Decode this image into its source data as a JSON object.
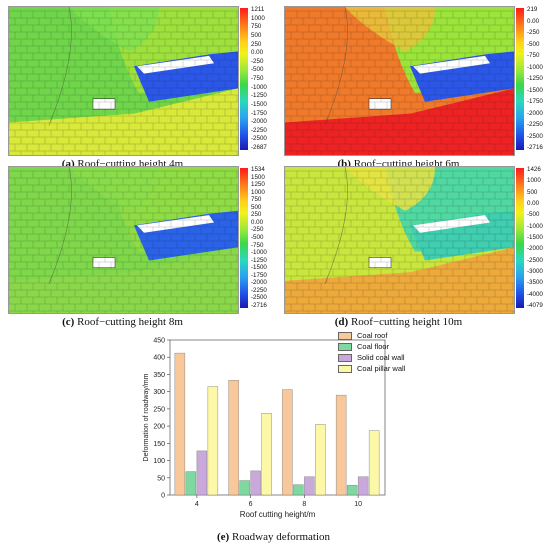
{
  "panels": [
    {
      "caption_letter": "(a)",
      "caption_text": "Roof−cutting height 4m",
      "colorbar_ticks": [
        "1211",
        "1000",
        "750",
        "500",
        "250",
        "0.00",
        "-250",
        "-500",
        "-750",
        "-1000",
        "-1250",
        "-1500",
        "-1750",
        "-2000",
        "-2250",
        "-2500",
        "-2687"
      ],
      "colors": {
        "left": "#6fd64a",
        "right": "#9ee03c",
        "floor": "#d8e93a",
        "block": "#2a57e8",
        "top": "#7fe04f"
      }
    },
    {
      "caption_letter": "(b)",
      "caption_text": "Roof−cutting height 6m",
      "colorbar_ticks": [
        "219",
        "0.00",
        "-250",
        "-500",
        "-750",
        "-1000",
        "-1250",
        "-1500",
        "-1750",
        "-2000",
        "-2250",
        "-2500",
        "-2716"
      ],
      "colors": {
        "left": "#f07a2a",
        "right": "#9be53a",
        "floor": "#ee2222",
        "block": "#2a57e8",
        "top": "#e8c43a"
      }
    },
    {
      "caption_letter": "(c)",
      "caption_text": "Roof−cutting height 8m",
      "colorbar_ticks": [
        "1534",
        "1500",
        "1250",
        "1000",
        "750",
        "500",
        "250",
        "0.00",
        "-250",
        "-500",
        "-750",
        "-1000",
        "-1250",
        "-1500",
        "-1750",
        "-2000",
        "-2250",
        "-2500",
        "-2716"
      ],
      "colors": {
        "left": "#7ed84a",
        "right": "#8fdc44",
        "floor": "#8ad84a",
        "block": "#2a62e8",
        "top": "#89dd4a"
      }
    },
    {
      "caption_letter": "(d)",
      "caption_text": "Roof−cutting height 10m",
      "colorbar_ticks": [
        "1426",
        "1000",
        "500",
        "0.00",
        "-500",
        "-1000",
        "-1500",
        "-2000",
        "-2500",
        "-3000",
        "-3500",
        "-4000",
        "-4079"
      ],
      "colors": {
        "left": "#c8e63c",
        "right": "#4fd8a0",
        "floor": "#eda93a",
        "block": "#3fcfb0",
        "top": "#e9e342"
      }
    }
  ],
  "chart_caption_letter": "(e)",
  "chart_caption_text": "Roadway deformation",
  "chart_data": {
    "type": "bar",
    "categories": [
      "4",
      "6",
      "8",
      "10"
    ],
    "series": [
      {
        "name": "Coal roof",
        "values": [
          412,
          333,
          306,
          290
        ],
        "color": "#f9c89a"
      },
      {
        "name": "Coal floor",
        "values": [
          68,
          42,
          30,
          28
        ],
        "color": "#7ed8a0"
      },
      {
        "name": "Solid coal wall",
        "values": [
          128,
          70,
          53,
          53
        ],
        "color": "#c9a8dc"
      },
      {
        "name": "Coal pillar wall",
        "values": [
          315,
          237,
          205,
          187
        ],
        "color": "#fdf8a8"
      }
    ],
    "xlabel": "Roof cutting height/m",
    "ylabel": "Deformation of roadway/mm",
    "ylim": [
      0,
      450
    ],
    "yticks": [
      "0",
      "50",
      "100",
      "150",
      "200",
      "250",
      "300",
      "350",
      "400",
      "450"
    ],
    "legend": "top-right"
  }
}
